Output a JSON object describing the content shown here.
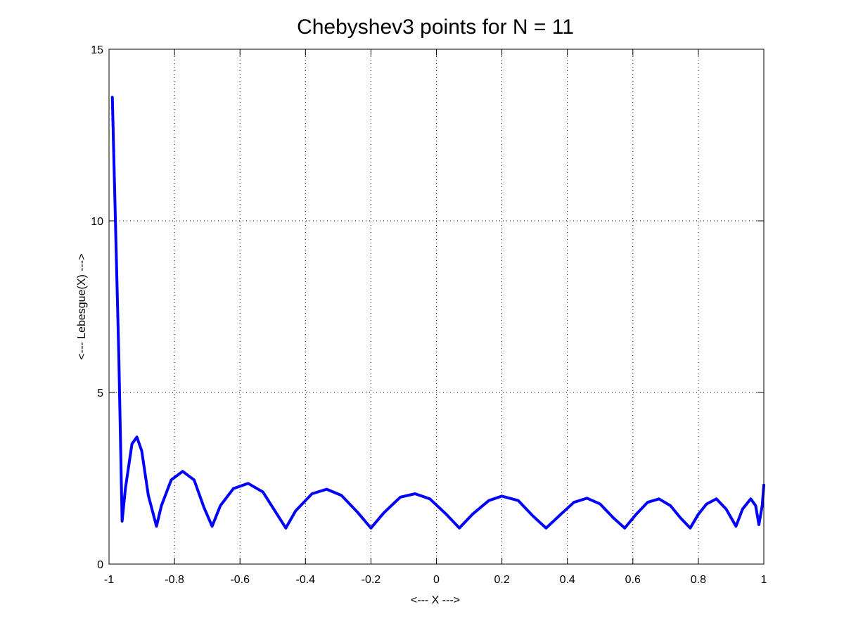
{
  "chart_data": {
    "type": "line",
    "title": "Chebyshev3 points for N = 11",
    "xlabel": "<--- X --->",
    "ylabel": "<--- Lebesgue(X) --->",
    "xlim": [
      -1,
      1
    ],
    "ylim": [
      0,
      15
    ],
    "xticks": [
      -1,
      -0.8,
      -0.6,
      -0.4,
      -0.2,
      0,
      0.2,
      0.4,
      0.6,
      0.8,
      1
    ],
    "xtick_labels": [
      "-1",
      "-0.8",
      "-0.6",
      "-0.4",
      "-0.2",
      "0",
      "0.2",
      "0.4",
      "0.6",
      "0.8",
      "1"
    ],
    "yticks": [
      0,
      5,
      10,
      15
    ],
    "ytick_labels": [
      "0",
      "5",
      "10",
      "15"
    ],
    "grid": true,
    "series": [
      {
        "color": "#0000ff",
        "x": [
          -0.99,
          -0.97,
          -0.96,
          -0.95,
          -0.93,
          -0.915,
          -0.9,
          -0.88,
          -0.855,
          -0.84,
          -0.81,
          -0.775,
          -0.74,
          -0.71,
          -0.685,
          -0.66,
          -0.62,
          -0.575,
          -0.53,
          -0.49,
          -0.46,
          -0.43,
          -0.38,
          -0.335,
          -0.29,
          -0.24,
          -0.2,
          -0.16,
          -0.11,
          -0.065,
          -0.02,
          0.03,
          0.07,
          0.11,
          0.16,
          0.2,
          0.25,
          0.295,
          0.335,
          0.38,
          0.42,
          0.46,
          0.5,
          0.54,
          0.575,
          0.61,
          0.645,
          0.68,
          0.715,
          0.745,
          0.775,
          0.8,
          0.825,
          0.855,
          0.885,
          0.915,
          0.935,
          0.96,
          0.975,
          0.985,
          0.995,
          1.0
        ],
        "y": [
          13.6,
          6.0,
          1.25,
          2.2,
          3.5,
          3.7,
          3.3,
          2.0,
          1.1,
          1.7,
          2.45,
          2.7,
          2.45,
          1.65,
          1.1,
          1.7,
          2.2,
          2.35,
          2.1,
          1.5,
          1.05,
          1.55,
          2.05,
          2.18,
          2.0,
          1.5,
          1.05,
          1.5,
          1.95,
          2.05,
          1.9,
          1.45,
          1.05,
          1.45,
          1.85,
          1.98,
          1.85,
          1.4,
          1.05,
          1.45,
          1.8,
          1.92,
          1.75,
          1.35,
          1.05,
          1.45,
          1.8,
          1.9,
          1.7,
          1.35,
          1.05,
          1.45,
          1.75,
          1.9,
          1.6,
          1.1,
          1.6,
          1.9,
          1.7,
          1.15,
          1.7,
          2.3
        ]
      }
    ]
  }
}
